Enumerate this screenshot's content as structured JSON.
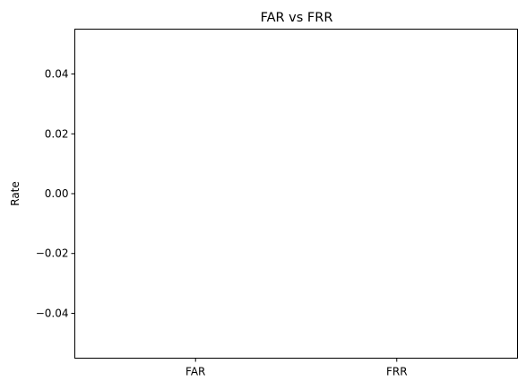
{
  "chart_data": {
    "type": "bar",
    "title": "FAR vs FRR",
    "xlabel": "",
    "ylabel": "Rate",
    "categories": [
      "FAR",
      "FRR"
    ],
    "values": [
      0,
      0
    ],
    "ylim": [
      -0.055,
      0.055
    ],
    "yticks": [
      -0.04,
      -0.02,
      0.0,
      0.02,
      0.04
    ],
    "ytick_labels": [
      "−0.04",
      "−0.02",
      "0.00",
      "0.02",
      "0.04"
    ],
    "grid": false,
    "colors": {
      "bar": "#1f77b4",
      "axes": "#000000",
      "background": "#ffffff"
    }
  }
}
